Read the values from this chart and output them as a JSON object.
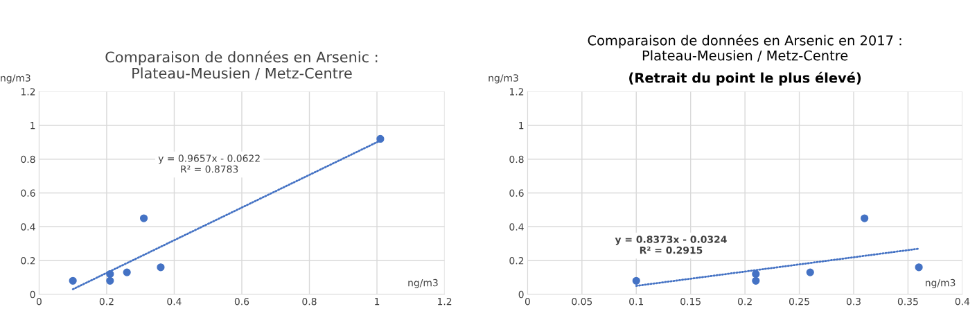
{
  "chart_data": [
    {
      "type": "scatter",
      "title": "Comparaison de données en Arsenic :\nPlateau-Meusien / Metz-Centre",
      "xlabel": "ng/m3",
      "ylabel": "ng/m3",
      "series": [
        {
          "type": "scatter",
          "color": "#4472c4",
          "marker": "circle",
          "x": [
            0.1,
            0.21,
            0.21,
            0.26,
            0.31,
            0.36,
            1.01
          ],
          "values": [
            0.08,
            0.12,
            0.08,
            0.13,
            0.45,
            0.16,
            0.92
          ]
        },
        {
          "type": "line",
          "color": "#4472c4",
          "line_style": "dotted",
          "marker": "none",
          "x": [
            0.1,
            1.01
          ],
          "values": [
            0.03,
            0.91
          ]
        }
      ],
      "annotations": [
        "y = 0.9657x - 0.0622\nR² = 0.8783"
      ],
      "xlim": [
        0,
        1.2
      ],
      "xticks": [
        0,
        0.2,
        0.4,
        0.6,
        0.8,
        1,
        1.2
      ],
      "ylim": [
        0,
        1.2
      ],
      "yticks": [
        0,
        0.2,
        0.4,
        0.6,
        0.8,
        1,
        1.2
      ],
      "grid": true,
      "legend": false
    },
    {
      "type": "scatter",
      "title": "Comparaison de données en Arsenic en 2017 :\nPlateau-Meusien / Metz-Centre",
      "subtitle": "(Retrait du point le plus élevé)",
      "xlabel": "ng/m3",
      "ylabel": "ng/m3",
      "series": [
        {
          "type": "scatter",
          "color": "#4472c4",
          "marker": "circle",
          "x": [
            0.1,
            0.21,
            0.21,
            0.26,
            0.31,
            0.36
          ],
          "values": [
            0.08,
            0.12,
            0.08,
            0.13,
            0.45,
            0.16
          ]
        },
        {
          "type": "line",
          "color": "#4472c4",
          "line_style": "dotted",
          "marker": "none",
          "x": [
            0.1,
            0.36
          ],
          "values": [
            0.05,
            0.27
          ]
        }
      ],
      "annotations": [
        "y = 0.8373x - 0.0324\nR² = 0.2915"
      ],
      "xlim": [
        0,
        0.4
      ],
      "xticks": [
        0,
        0.05,
        0.1,
        0.15,
        0.2,
        0.25,
        0.3,
        0.35,
        0.4
      ],
      "ylim": [
        0,
        1.2
      ],
      "yticks": [
        0,
        0.2,
        0.4,
        0.6,
        0.8,
        1,
        1.2
      ],
      "grid": true,
      "legend": false
    }
  ]
}
